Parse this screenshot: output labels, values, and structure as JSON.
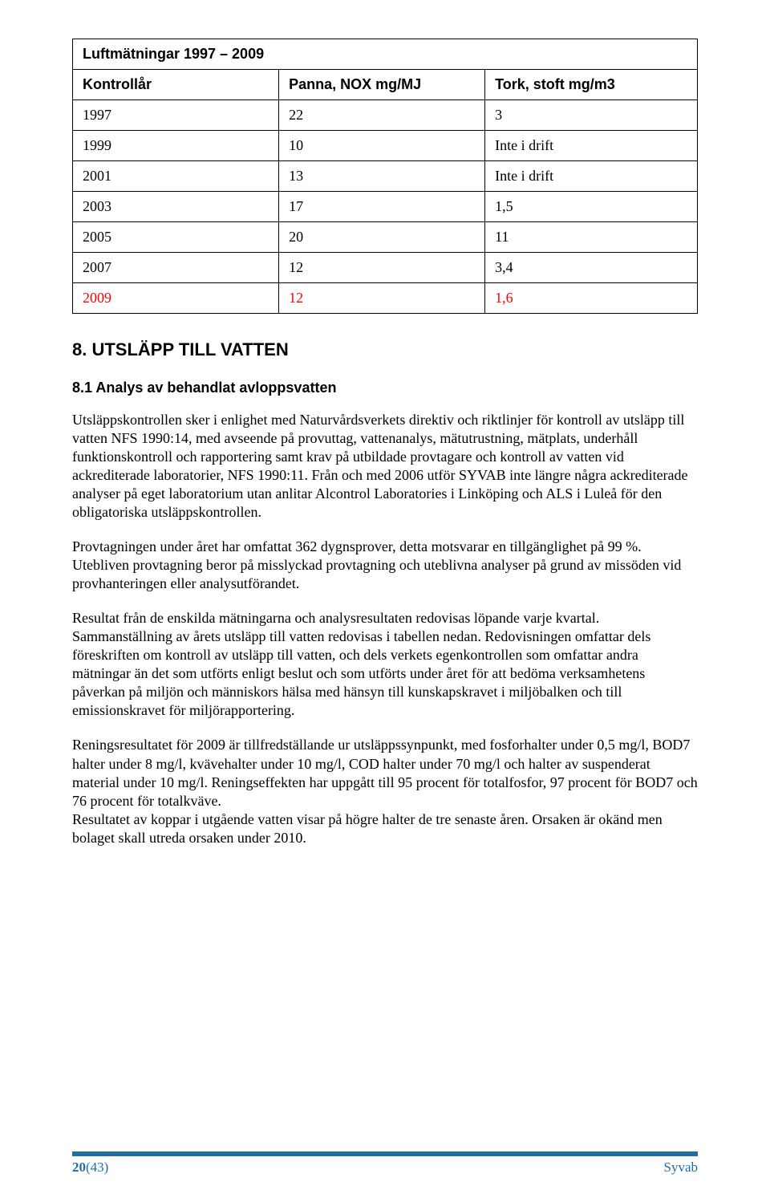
{
  "table": {
    "title": "Luftmätningar 1997 – 2009",
    "headers": [
      "Kontrollår",
      "Panna, NOX mg/MJ",
      "Tork, stoft mg/m3"
    ],
    "rows": [
      {
        "cells": [
          "1997",
          "22",
          "3"
        ],
        "red": false
      },
      {
        "cells": [
          "1999",
          "10",
          "Inte i drift"
        ],
        "red": false
      },
      {
        "cells": [
          "2001",
          "13",
          "Inte i drift"
        ],
        "red": false
      },
      {
        "cells": [
          "2003",
          "17",
          "1,5"
        ],
        "red": false
      },
      {
        "cells": [
          "2005",
          "20",
          "11"
        ],
        "red": false
      },
      {
        "cells": [
          "2007",
          "12",
          "3,4"
        ],
        "red": false
      },
      {
        "cells": [
          "2009",
          "12",
          "1,6"
        ],
        "red": true
      }
    ],
    "header_bg": "#d9d9d9",
    "border_color": "#000000",
    "cell_font_size": 18
  },
  "section": {
    "heading": "8. UTSLÄPP TILL VATTEN",
    "subheading": "8.1 Analys av behandlat avloppsvatten"
  },
  "paragraphs": {
    "p1": "Utsläppskontrollen sker i enlighet med Naturvårdsverkets direktiv och riktlinjer för kontroll av utsläpp till vatten NFS 1990:14, med avseende på provuttag, vattenanalys, mätutrustning, mätplats, underhåll funktionskontroll och rapportering samt krav på utbildade provtagare och kontroll av vatten vid ackrediterade laboratorier, NFS 1990:11. Från och med 2006 utför SYVAB inte längre några ackrediterade analyser på eget laboratorium utan anlitar Alcontrol Laboratories i Linköping och ALS i Luleå för den obligatoriska utsläppskontrollen.",
    "p2": "Provtagningen under året har omfattat 362 dygnsprover, detta motsvarar en tillgänglighet på 99 %. Utebliven provtagning beror på misslyckad provtagning och uteblivna analyser på grund av missöden vid provhanteringen eller analysutförandet.",
    "p3": "Resultat från de enskilda mätningarna och analysresultaten redovisas löpande varje kvartal. Sammanställning av årets utsläpp till vatten redovisas i tabellen nedan. Redovisningen omfattar dels föreskriften om kontroll av utsläpp till vatten, och dels verkets egenkontrollen som omfattar andra mätningar än det som utförts enligt beslut och som utförts under året för att bedöma verksamhetens påverkan på miljön och människors hälsa med hänsyn till kunskapskravet i miljöbalken och till emissionskravet för miljörapportering.",
    "p4": "Reningsresultatet för 2009 är tillfredställande ur utsläppssynpunkt, med fosforhalter under 0,5 mg/l, BOD7 halter under 8 mg/l, kvävehalter under 10 mg/l, COD halter under 70 mg/l och halter av suspenderat material under 10 mg/l. Reningseffekten har uppgått till 95 procent för totalfosfor, 97 procent för BOD7 och 76 procent för totalkväve.",
    "p5": "Resultatet av koppar i utgående vatten visar på högre halter de tre senaste åren. Orsaken är okänd men bolaget skall utreda orsaken under 2010."
  },
  "footer": {
    "page": "20",
    "total": "(43)",
    "right": "Syvab",
    "bar_color": "#1f6fa3"
  }
}
